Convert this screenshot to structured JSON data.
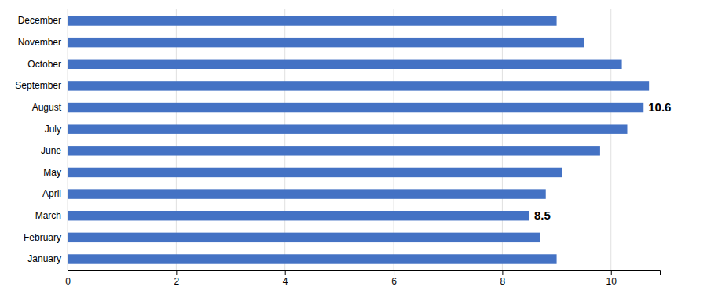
{
  "chart_data": {
    "type": "bar",
    "orientation": "horizontal",
    "categories": [
      "January",
      "February",
      "March",
      "April",
      "May",
      "June",
      "July",
      "August",
      "September",
      "October",
      "November",
      "December"
    ],
    "values": [
      9.0,
      8.7,
      8.5,
      8.8,
      9.1,
      9.8,
      10.3,
      10.6,
      10.7,
      10.2,
      9.5,
      9.0
    ],
    "color": "#4472C4",
    "xlim": [
      0,
      10.9
    ],
    "xticks": [
      0,
      2,
      4,
      6,
      8,
      10
    ],
    "grid": true,
    "annotations": [
      {
        "category": "March",
        "value": 8.5,
        "text": "8.5"
      },
      {
        "category": "August",
        "value": 10.6,
        "text": "10.6"
      }
    ]
  }
}
